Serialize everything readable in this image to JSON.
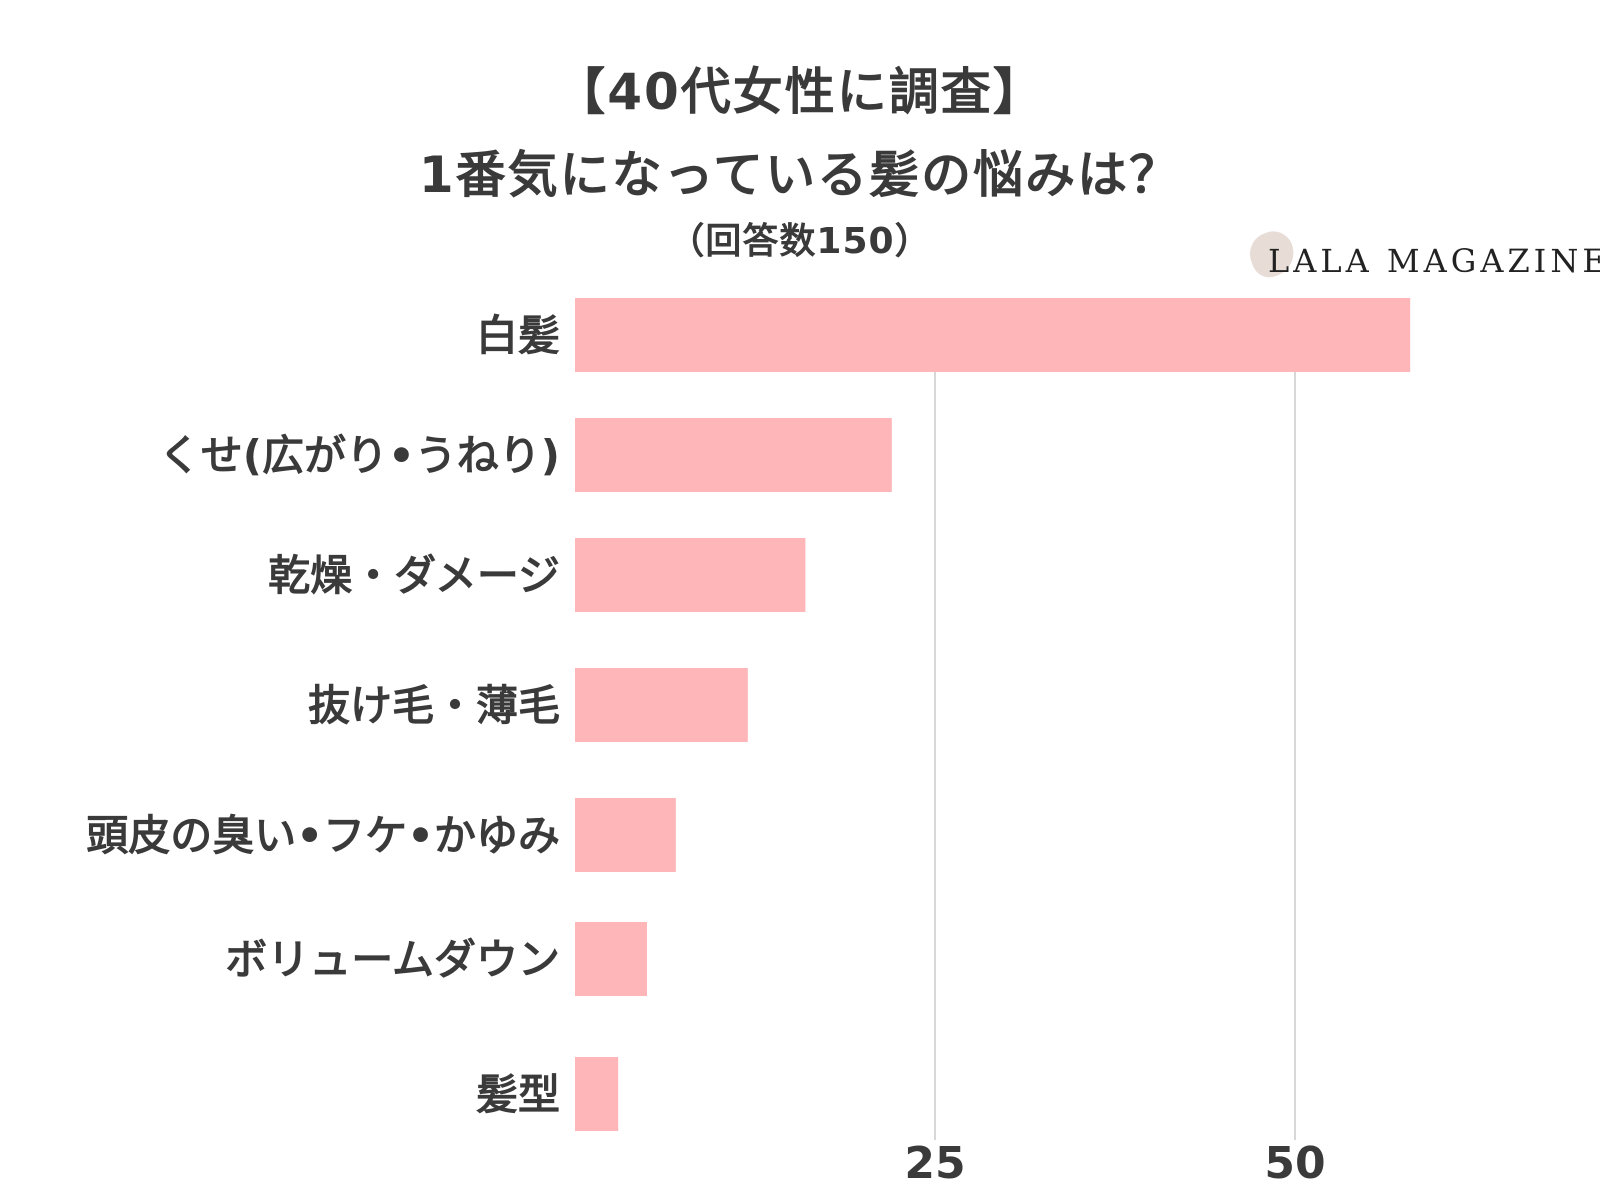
{
  "title_line1": "【40代女性に調査】",
  "title_line2": "1番気になっている髪の悩みは？",
  "subtitle": "（回答数150）",
  "logo_text": "LALA MAGAZINE",
  "colors": {
    "bar": "#feb6b8",
    "grid": "#cccccc",
    "text": "#3a3a3a"
  },
  "chart_data": {
    "type": "bar",
    "orientation": "horizontal",
    "title": "1番気になっている髪の悩みは？",
    "categories": [
      "白髪",
      "くせ(広がり•うねり)",
      "乾燥・ダメージ",
      "抜け毛・薄毛",
      "頭皮の臭い•フケ•かゆみ",
      "ボリュームダウン",
      "髪型"
    ],
    "values": [
      58,
      22,
      16,
      12,
      7,
      5,
      3
    ],
    "xlim": [
      0,
      70
    ],
    "xticks": [
      25,
      50
    ],
    "grid": true,
    "legend": "none"
  }
}
